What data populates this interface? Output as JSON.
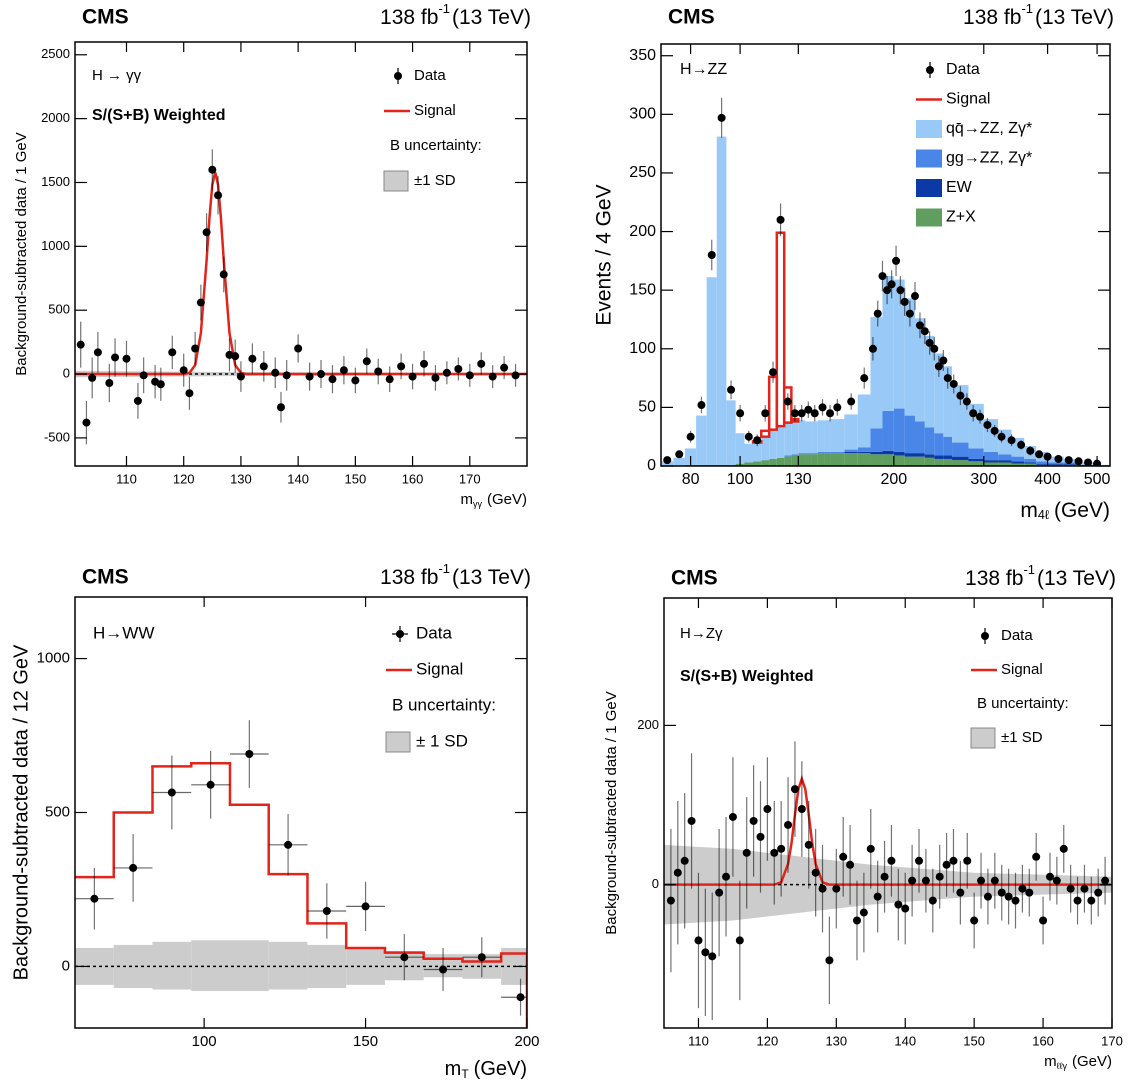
{
  "chart_data": [
    {
      "type": "scatter",
      "experiment": "CMS",
      "luminosity": "138 fb",
      "luminosity_exp": "-1",
      "energy": "(13 TeV)",
      "process": "H → γγ",
      "annotation": "S/(S+B) Weighted",
      "ylabel": "Background-subtracted data / 1 GeV",
      "xlabel": "m",
      "xlabel_sub": "γγ",
      "xlabel_unit": "(GeV)",
      "xlim": [
        101,
        180
      ],
      "ylim": [
        -720,
        2600
      ],
      "xticks": [
        110,
        120,
        130,
        140,
        150,
        160,
        170
      ],
      "yticks": [
        -500,
        0,
        500,
        1000,
        1500,
        2000,
        2500
      ],
      "zero_line": true,
      "data": {
        "name": "Data",
        "color": "#000000",
        "x": [
          102,
          103,
          104,
          105,
          107,
          108,
          110,
          112,
          113,
          115,
          116,
          118,
          120,
          121,
          122,
          123,
          124,
          125,
          126,
          127,
          128,
          129,
          130,
          132,
          134,
          136,
          137,
          138,
          140,
          142,
          144,
          146,
          148,
          150,
          152,
          154,
          156,
          158,
          160,
          162,
          164,
          166,
          168,
          170,
          172,
          174,
          176,
          178
        ],
        "values": [
          230,
          -380,
          -30,
          170,
          -70,
          130,
          120,
          -210,
          -10,
          -60,
          -80,
          170,
          30,
          -150,
          200,
          560,
          1110,
          1600,
          1400,
          780,
          150,
          140,
          -20,
          120,
          60,
          10,
          -260,
          -10,
          200,
          -20,
          0,
          -40,
          30,
          -50,
          100,
          20,
          -40,
          60,
          -20,
          80,
          -30,
          10,
          40,
          -10,
          80,
          -20,
          50,
          -10
        ],
        "errors": [
          180,
          170,
          160,
          160,
          150,
          150,
          140,
          140,
          140,
          130,
          130,
          130,
          130,
          130,
          130,
          140,
          150,
          160,
          150,
          140,
          130,
          130,
          120,
          120,
          120,
          120,
          120,
          120,
          110,
          110,
          110,
          110,
          110,
          100,
          100,
          100,
          100,
          100,
          100,
          100,
          100,
          90,
          90,
          90,
          90,
          90,
          90,
          90
        ]
      },
      "signal": {
        "name": "Signal",
        "color": "#e3241b",
        "x": [
          101,
          120,
          121,
          122,
          123,
          124,
          124.5,
          125,
          125.5,
          126,
          126.5,
          127,
          128,
          129,
          130,
          131,
          180
        ],
        "values": [
          0,
          0,
          9,
          70,
          321,
          890,
          1224,
          1482,
          1580,
          1482,
          1224,
          890,
          321,
          70,
          9,
          0,
          0
        ]
      },
      "band": {
        "title": "B uncertainty:",
        "name": "±1 SD",
        "color": "#cccccc",
        "x": [
          101,
          130,
          180
        ],
        "lower": [
          -25,
          -15,
          -10
        ],
        "upper": [
          25,
          15,
          10
        ]
      }
    },
    {
      "type": "stacked_histogram",
      "experiment": "CMS",
      "luminosity": "138 fb",
      "luminosity_exp": "-1",
      "energy": "(13 TeV)",
      "process": "H→ZZ",
      "ylabel": "Events / 4 GeV",
      "xlabel": "m",
      "xlabel_sub": "4ℓ",
      "xlabel_unit": "(GeV)",
      "log_x": true,
      "xlim": [
        70,
        530
      ],
      "ylim": [
        0,
        360
      ],
      "xticks": [
        80,
        100,
        130,
        200,
        300,
        400,
        500
      ],
      "yticks": [
        0,
        50,
        100,
        150,
        200,
        250,
        300,
        350
      ],
      "bins": [
        70,
        74,
        78,
        82,
        86,
        90,
        94,
        98,
        102,
        106,
        110,
        114,
        118,
        122,
        126,
        130,
        134,
        138,
        142,
        146,
        150,
        160,
        170,
        180,
        190,
        200,
        210,
        220,
        230,
        240,
        250,
        260,
        280,
        300,
        320,
        340,
        360,
        380,
        400,
        430,
        460,
        500,
        530
      ],
      "data": {
        "name": "Data",
        "color": "#000000",
        "x": [
          72,
          76,
          80,
          84,
          88,
          92,
          96,
          100,
          104,
          108,
          112,
          116,
          120,
          124,
          128,
          132,
          136,
          140,
          145,
          150,
          155,
          165,
          175,
          182,
          186,
          190,
          194,
          198,
          202,
          206,
          210,
          215,
          220,
          225,
          230,
          235,
          240,
          245,
          250,
          255,
          262,
          270,
          278,
          286,
          295,
          305,
          315,
          325,
          340,
          355,
          370,
          385,
          400,
          420,
          440,
          460,
          480,
          500
        ],
        "values": [
          5,
          10,
          25,
          52,
          180,
          297,
          65,
          45,
          25,
          22,
          45,
          80,
          210,
          55,
          45,
          45,
          48,
          45,
          50,
          45,
          50,
          55,
          75,
          100,
          130,
          162,
          150,
          155,
          175,
          150,
          140,
          130,
          145,
          120,
          115,
          105,
          100,
          85,
          90,
          75,
          70,
          60,
          55,
          45,
          42,
          35,
          30,
          25,
          22,
          18,
          13,
          10,
          8,
          6,
          5,
          4,
          3,
          2
        ],
        "errors": [
          2,
          3,
          5,
          7,
          13,
          17,
          8,
          7,
          5,
          5,
          7,
          9,
          14,
          7,
          7,
          7,
          7,
          7,
          7,
          7,
          7,
          7,
          9,
          10,
          11,
          13,
          12,
          12,
          13,
          12,
          12,
          11,
          12,
          11,
          11,
          10,
          10,
          9,
          9,
          9,
          8,
          8,
          7,
          7,
          6,
          6,
          5,
          5,
          5,
          4,
          4,
          3,
          3,
          2,
          2,
          2,
          2,
          1
        ]
      },
      "signal": {
        "name": "Signal",
        "color": "#e3241b",
        "values": [
          0,
          0,
          0,
          0,
          0,
          0,
          0,
          0,
          0,
          1,
          5,
          45,
          165,
          30,
          2,
          0,
          0,
          0,
          0,
          0,
          0,
          0,
          0,
          0,
          0,
          0,
          0,
          0,
          0,
          0,
          0,
          0,
          0,
          0,
          0,
          0,
          0,
          0,
          0,
          0,
          0,
          0
        ]
      },
      "series": [
        {
          "name": "qq̄→ZZ, Zγ*",
          "color": "#99c9f7",
          "values": [
            4,
            7,
            14,
            42,
            160,
            280,
            55,
            26,
            16,
            16,
            20,
            25,
            27,
            28,
            28,
            28,
            27,
            27,
            27,
            27,
            28,
            30,
            45,
            95,
            115,
            110,
            100,
            88,
            78,
            68,
            60,
            49,
            38,
            28,
            21,
            16,
            11,
            8,
            5,
            3,
            2,
            1
          ]
        },
        {
          "name": "gg→ZZ, Zγ*",
          "color": "#4a86e8",
          "values": [
            0,
            0,
            0,
            0,
            0,
            0,
            0,
            0,
            0,
            0,
            0,
            0,
            0,
            1,
            1,
            1,
            1,
            1,
            1,
            1,
            1,
            2,
            4,
            20,
            34,
            37,
            32,
            27,
            23,
            19,
            16,
            12,
            9,
            7,
            5,
            4,
            3,
            2,
            1,
            1,
            0,
            0
          ]
        },
        {
          "name": "EW",
          "color": "#0b3aa6",
          "values": [
            0,
            0,
            0,
            0,
            0,
            0,
            0,
            0,
            0,
            0,
            0,
            0,
            0,
            0,
            0,
            0,
            0,
            0,
            0,
            0,
            0,
            1,
            1,
            2,
            3,
            3,
            3,
            3,
            3,
            3,
            3,
            3,
            2,
            2,
            2,
            2,
            1,
            1,
            1,
            1,
            1,
            0
          ]
        },
        {
          "name": "Z+X",
          "color": "#5f9e5f",
          "values": [
            0,
            0,
            1,
            1,
            1,
            1,
            1,
            2,
            3,
            4,
            5,
            6,
            7,
            8,
            9,
            10,
            10,
            10,
            11,
            11,
            11,
            11,
            11,
            10,
            10,
            9,
            8,
            8,
            7,
            6,
            6,
            5,
            4,
            3,
            3,
            2,
            2,
            1,
            1,
            1,
            0,
            0
          ]
        }
      ]
    },
    {
      "type": "histogram",
      "experiment": "CMS",
      "luminosity": "138 fb",
      "luminosity_exp": "-1",
      "energy": "(13 TeV)",
      "process": "H→WW",
      "ylabel": "Background-subtracted data / 12 GeV",
      "xlabel": "m",
      "xlabel_sub": "T",
      "xlabel_unit": "(GeV)",
      "xlim": [
        60,
        200
      ],
      "ylim": [
        -200,
        1200
      ],
      "xticks": [
        100,
        150,
        200
      ],
      "yticks": [
        0,
        500,
        1000
      ],
      "zero_line": true,
      "bins": [
        60,
        72,
        84,
        96,
        108,
        120,
        132,
        144,
        156,
        168,
        180,
        192,
        200
      ],
      "data": {
        "name": "Data",
        "color": "#000000",
        "x": [
          66,
          78,
          90,
          102,
          114,
          126,
          138,
          150,
          162,
          174,
          186,
          198
        ],
        "x_errors": [
          6,
          6,
          6,
          6,
          6,
          6,
          6,
          6,
          6,
          6,
          6,
          6
        ],
        "values": [
          220,
          320,
          565,
          590,
          690,
          395,
          180,
          195,
          30,
          -10,
          30,
          -100
        ],
        "errors": [
          100,
          110,
          120,
          110,
          110,
          100,
          90,
          80,
          75,
          70,
          65,
          60
        ]
      },
      "signal": {
        "name": "Signal",
        "color": "#e3241b",
        "values": [
          290,
          500,
          650,
          660,
          525,
          300,
          140,
          60,
          45,
          25,
          16,
          42
        ]
      },
      "band": {
        "title": "B uncertainty:",
        "name": "± 1 SD",
        "color": "#cccccc",
        "lower": [
          -60,
          -70,
          -75,
          -80,
          -80,
          -75,
          -70,
          -60,
          -45,
          -35,
          -40,
          -60
        ],
        "upper": [
          60,
          70,
          80,
          85,
          85,
          80,
          70,
          60,
          50,
          40,
          40,
          60
        ]
      }
    },
    {
      "type": "scatter",
      "experiment": "CMS",
      "luminosity": "138 fb",
      "luminosity_exp": "-1",
      "energy": "(13 TeV)",
      "process": "H→Zγ",
      "annotation": "S/(S+B) Weighted",
      "ylabel": "Background-subtracted data / 1 GeV",
      "xlabel": "m",
      "xlabel_sub": "ℓℓγ",
      "xlabel_unit": "(GeV)",
      "xlim": [
        105,
        170
      ],
      "ylim": [
        -180,
        360
      ],
      "xticks": [
        110,
        120,
        130,
        140,
        150,
        160,
        170
      ],
      "yticks": [
        0,
        200
      ],
      "zero_line": true,
      "data": {
        "name": "Data",
        "color": "#000000",
        "x": [
          106,
          107,
          108,
          109,
          110,
          111,
          112,
          113,
          114,
          115,
          116,
          117,
          118,
          119,
          120,
          121,
          122,
          123,
          124,
          125,
          126,
          127,
          128,
          129,
          130,
          131,
          132,
          133,
          134,
          135,
          136,
          137,
          138,
          139,
          140,
          141,
          142,
          143,
          144,
          145,
          146,
          147,
          148,
          149,
          150,
          151,
          152,
          153,
          154,
          155,
          156,
          157,
          158,
          159,
          160,
          161,
          162,
          163,
          164,
          165,
          166,
          167,
          168,
          169
        ],
        "values": [
          -20,
          15,
          30,
          80,
          -70,
          -85,
          -90,
          -10,
          10,
          85,
          -70,
          40,
          80,
          60,
          95,
          40,
          45,
          75,
          120,
          95,
          50,
          15,
          -5,
          -95,
          -5,
          35,
          25,
          -45,
          -35,
          45,
          -15,
          10,
          30,
          -25,
          -30,
          5,
          30,
          5,
          -20,
          10,
          25,
          30,
          -10,
          30,
          -45,
          5,
          -15,
          5,
          -10,
          -15,
          -20,
          -5,
          -10,
          35,
          -45,
          10,
          5,
          45,
          -5,
          -20,
          -5,
          -20,
          -10,
          5
        ],
        "errors": [
          90,
          90,
          85,
          85,
          85,
          80,
          80,
          80,
          75,
          75,
          75,
          70,
          70,
          70,
          65,
          65,
          60,
          60,
          60,
          60,
          55,
          55,
          55,
          55,
          50,
          50,
          50,
          50,
          50,
          50,
          45,
          45,
          45,
          45,
          45,
          45,
          40,
          40,
          40,
          40,
          40,
          40,
          40,
          35,
          35,
          35,
          35,
          35,
          35,
          35,
          35,
          30,
          30,
          30,
          30,
          30,
          30,
          30,
          30,
          30,
          30,
          30,
          30,
          30
        ]
      },
      "signal": {
        "name": "Signal",
        "color": "#e3241b",
        "x": [
          105,
          121,
          122,
          123,
          123.5,
          124,
          124.5,
          125,
          125.5,
          126,
          126.5,
          127,
          128,
          129,
          170
        ],
        "values": [
          0,
          0,
          3,
          26,
          52,
          88,
          120,
          133,
          120,
          88,
          52,
          26,
          3,
          0,
          0
        ]
      },
      "band": {
        "title": "B uncertainty:",
        "name": "±1 SD",
        "color": "#cccccc",
        "x": [
          105,
          115,
          125,
          135,
          150,
          170
        ],
        "lower": [
          -50,
          -45,
          -35,
          -25,
          -15,
          -10
        ],
        "upper": [
          50,
          45,
          35,
          25,
          15,
          10
        ]
      }
    }
  ]
}
